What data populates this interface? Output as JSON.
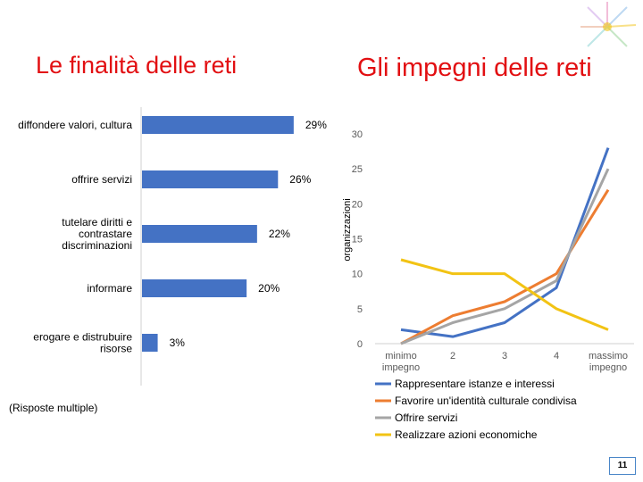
{
  "slide": {
    "title_left": "Le finalità delle reti",
    "title_right": "Gli impegni delle reti",
    "note": "(Risposte multiple)",
    "page_number": "11"
  },
  "colors": {
    "title": "#e20f12",
    "bar": "#4472c4",
    "series": [
      "#4472c4",
      "#ed7d31",
      "#a5a5a5",
      "#f2c314"
    ]
  },
  "chart_data": [
    {
      "type": "bar",
      "orientation": "horizontal",
      "categories": [
        [
          "diffondere valori, cultura"
        ],
        [
          "offrire servizi"
        ],
        [
          "tutelare diritti e",
          "contrastare",
          "discriminazioni"
        ],
        [
          "informare"
        ],
        [
          "erogare e distrubuire",
          "risorse"
        ]
      ],
      "values": [
        29,
        26,
        22,
        20,
        3
      ],
      "data_labels": [
        "29%",
        "26%",
        "22%",
        "20%",
        "3%"
      ],
      "xlim": [
        0,
        35
      ]
    },
    {
      "type": "line",
      "x_labels": [
        [
          "minimo",
          "impegno"
        ],
        [
          "2"
        ],
        [
          "3"
        ],
        [
          "4"
        ],
        [
          "massimo",
          "impegno"
        ]
      ],
      "ylabel": "organizzazioni",
      "ylim": [
        0,
        30
      ],
      "yticks": [
        0,
        5,
        10,
        15,
        20,
        25,
        30
      ],
      "series": [
        {
          "name": "Rappresentare istanze e interessi",
          "values": [
            2,
            1,
            3,
            8,
            28
          ]
        },
        {
          "name": "Favorire un'identità culturale condivisa",
          "values": [
            0,
            4,
            6,
            10,
            22
          ]
        },
        {
          "name": "Offrire servizi",
          "values": [
            0,
            3,
            5,
            9,
            25
          ]
        },
        {
          "name": "Realizzare azioni economiche",
          "values": [
            12,
            10,
            10,
            5,
            2
          ]
        }
      ],
      "legend_position": "bottom"
    }
  ]
}
